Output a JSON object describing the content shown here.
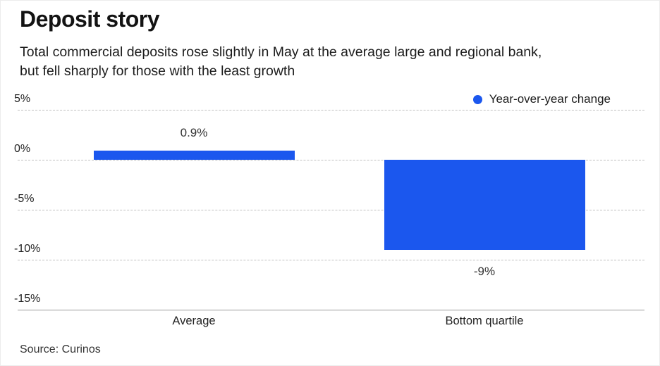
{
  "header": {
    "title": "Deposit story",
    "subtitle_line1": "Total commercial deposits rose slightly in May at the average large and regional bank,",
    "subtitle_line2": "but fell sharply for those with the least growth"
  },
  "legend": {
    "label": "Year-over-year change",
    "marker_color": "#1b57ee"
  },
  "source": {
    "text": "Source: Curinos"
  },
  "colors": {
    "bar": "#1b57ee",
    "gridline": "#bfbfbf",
    "axis_line": "#999999"
  },
  "chart_data": {
    "type": "bar",
    "title": "Deposit story",
    "subtitle": "Total commercial deposits rose slightly in May at the average large and regional bank, but fell sharply for those with the least growth",
    "categories": [
      "Average",
      "Bottom quartile"
    ],
    "values": [
      0.9,
      -9
    ],
    "value_labels": [
      "0.9%",
      "-9%"
    ],
    "series_name": "Year-over-year change",
    "xlabel": "",
    "ylabel": "",
    "ylim": [
      -15,
      5
    ],
    "yticks": [
      5,
      0,
      -5,
      -10,
      -15
    ],
    "ytick_labels": [
      "5%",
      "0%",
      "-5%",
      "-10%",
      "-15%"
    ],
    "grid": true,
    "legend_position": "top-right",
    "source": "Source: Curinos"
  }
}
